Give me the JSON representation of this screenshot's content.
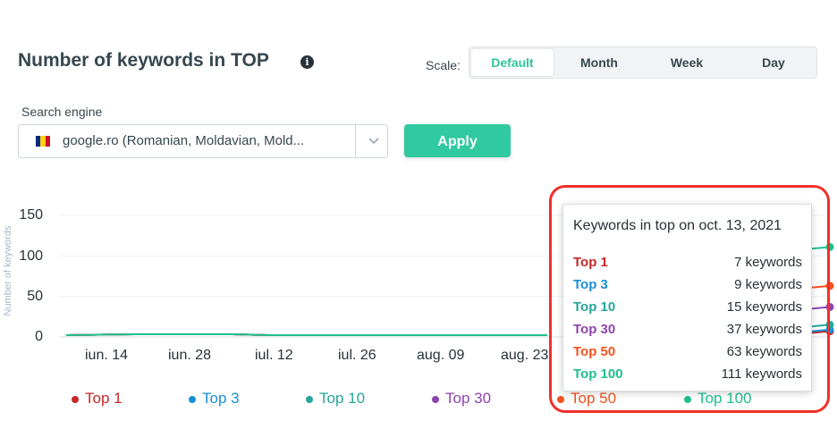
{
  "header": {
    "title": "Number of keywords in TOP",
    "info_icon": "info-icon",
    "scale_label": "Scale:",
    "scale_options": [
      "Default",
      "Month",
      "Week",
      "Day"
    ],
    "scale_selected": "Default"
  },
  "search_engine": {
    "label": "Search engine",
    "value": "google.ro (Romanian, Moldavian, Mold...",
    "flag_icon": "romania-flag-icon",
    "flag_colors": [
      "#002b7f",
      "#fcd116",
      "#ce1126"
    ]
  },
  "apply_label": "Apply",
  "accent_color": "#30c9a0",
  "chart_data": {
    "type": "line",
    "y_ticks": [
      "150",
      "100",
      "50",
      "0"
    ],
    "ylim": [
      0,
      150
    ],
    "ylabel": "Number of keywords",
    "x_ticks": [
      "iun. 14",
      "iun. 28",
      "iul. 12",
      "iul. 26",
      "aug. 09",
      "aug. 23"
    ],
    "grid": true,
    "legend_placement": "bottom",
    "series": [
      {
        "name": "Top 1",
        "color": "#c62828",
        "last_value": 7
      },
      {
        "name": "Top 3",
        "color": "#1a8fd6",
        "last_value": 9
      },
      {
        "name": "Top 10",
        "color": "#26a69a",
        "last_value": 15
      },
      {
        "name": "Top 30",
        "color": "#8e44ad",
        "last_value": 37
      },
      {
        "name": "Top 50",
        "color": "#f4511e",
        "last_value": 63
      },
      {
        "name": "Top 100",
        "color": "#1fbf8f",
        "last_value": 111
      }
    ]
  },
  "legend": [
    {
      "name": "Top 1",
      "color": "#c62828"
    },
    {
      "name": "Top 3",
      "color": "#1a8fd6"
    },
    {
      "name": "Top 10",
      "color": "#26a69a"
    },
    {
      "name": "Top 30",
      "color": "#8e44ad"
    },
    {
      "name": "Top 50",
      "color": "#f4511e"
    },
    {
      "name": "Top 100",
      "color": "#1fbf8f"
    }
  ],
  "tooltip": {
    "title": "Keywords in top on oct. 13, 2021",
    "rows": [
      {
        "name": "Top 1",
        "value": "7 keywords",
        "color": "#c62828"
      },
      {
        "name": "Top 3",
        "value": "9 keywords",
        "color": "#1a8fd6"
      },
      {
        "name": "Top 10",
        "value": "15 keywords",
        "color": "#26a69a"
      },
      {
        "name": "Top 30",
        "value": "37 keywords",
        "color": "#8e44ad"
      },
      {
        "name": "Top 50",
        "value": "63 keywords",
        "color": "#f4511e"
      },
      {
        "name": "Top 100",
        "value": "111 keywords",
        "color": "#1fbf8f"
      }
    ]
  },
  "highlight_color": "#f0302a"
}
